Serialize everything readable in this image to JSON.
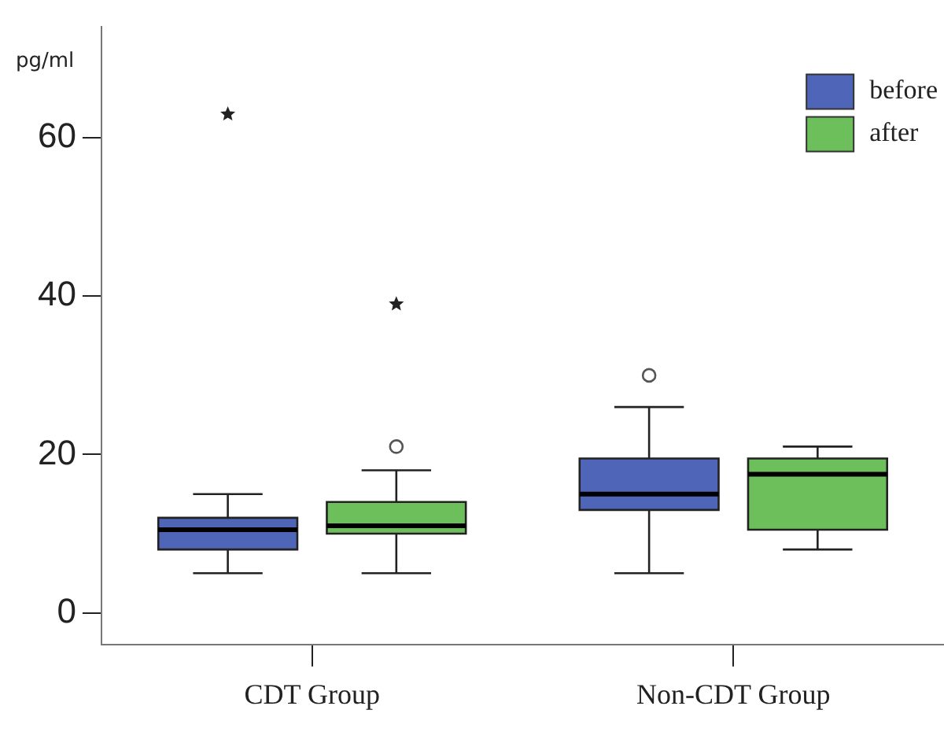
{
  "chart_data": {
    "type": "box",
    "ylabel": "pg/ml",
    "categories": [
      "CDT Group",
      "Non-CDT Group"
    ],
    "series": [
      {
        "name": "before",
        "color": "#4f66b8",
        "boxes": [
          {
            "low": 5,
            "q1": 8,
            "median": 10.5,
            "q3": 12,
            "high": 15,
            "outliers": [
              63
            ]
          },
          {
            "low": 5,
            "q1": 13,
            "median": 15,
            "q3": 19.5,
            "high": 26,
            "outliers": [
              30
            ]
          }
        ]
      },
      {
        "name": "after",
        "color": "#6cbf5a",
        "boxes": [
          {
            "low": 5,
            "q1": 10,
            "median": 11,
            "q3": 14,
            "high": 18,
            "outliers": [
              21,
              39
            ]
          },
          {
            "low": 8,
            "q1": 10.5,
            "median": 17.5,
            "q3": 19.5,
            "high": 21
          }
        ]
      }
    ],
    "ylim": [
      -4,
      74
    ],
    "yticks": [
      0,
      20,
      40,
      60
    ],
    "grid": false,
    "legend": "top right"
  }
}
